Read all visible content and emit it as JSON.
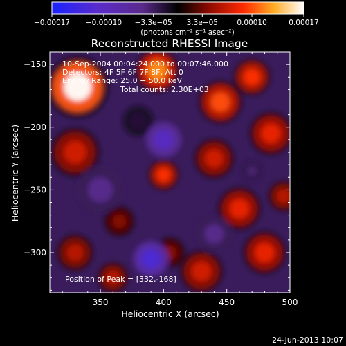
{
  "colorbar": {
    "tick_labels": [
      "−0.00017",
      "−0.00010",
      "−3.3e−05",
      "3.3e−05",
      "0.00010",
      "0.00017"
    ],
    "tick_values": [
      -0.00017,
      -0.0001,
      -3.3e-05,
      3.3e-05,
      0.0001,
      0.00017
    ],
    "range": [
      -0.00017,
      0.00017
    ],
    "units_label": "(photons cm⁻² s⁻¹ asec⁻²)"
  },
  "chart_data": {
    "type": "heatmap",
    "title": "Reconstructed RHESSI Image",
    "xlabel": "Heliocentric X (arcsec)",
    "ylabel": "Heliocentric Y (arcsec)",
    "xlim": [
      310,
      500
    ],
    "ylim": [
      -332,
      -140
    ],
    "x_ticks": [
      350,
      400,
      450,
      500
    ],
    "x_tick_labels": [
      "350",
      "400",
      "450",
      "500"
    ],
    "y_ticks": [
      -150,
      -200,
      -250,
      -300
    ],
    "y_tick_labels": [
      "−150",
      "−200",
      "−250",
      "−300"
    ],
    "annotations": {
      "time_range": "10-Sep-2004 00:04:24.000 to 00:07:46.000",
      "detectors": "Detectors: 4F 5F 6F 7F 8F, Att 0",
      "energy_range": "Energy Range: 25.0 − 50.0 keV",
      "total_counts": "Total counts: 2.30E+03",
      "peak_position": "Position of Peak = [332,-168]"
    },
    "peak": [
      332,
      -168
    ],
    "colormap": "blue-purple-black-red-orange-yellow-white",
    "blobs": [
      {
        "x": 332,
        "y": -168,
        "r": 20,
        "v": 0.00017
      },
      {
        "x": 395,
        "y": -155,
        "r": 14,
        "v": 0.00012
      },
      {
        "x": 445,
        "y": -180,
        "r": 14,
        "v": 0.0001
      },
      {
        "x": 470,
        "y": -160,
        "r": 12,
        "v": 9e-05
      },
      {
        "x": 485,
        "y": -205,
        "r": 14,
        "v": 8e-05
      },
      {
        "x": 440,
        "y": -225,
        "r": 13,
        "v": 7e-05
      },
      {
        "x": 400,
        "y": -238,
        "r": 10,
        "v": 9e-05
      },
      {
        "x": 330,
        "y": -220,
        "r": 16,
        "v": 7e-05
      },
      {
        "x": 460,
        "y": -265,
        "r": 14,
        "v": 8e-05
      },
      {
        "x": 495,
        "y": -255,
        "r": 10,
        "v": 6e-05
      },
      {
        "x": 480,
        "y": -300,
        "r": 14,
        "v": 8e-05
      },
      {
        "x": 430,
        "y": -315,
        "r": 14,
        "v": 7e-05
      },
      {
        "x": 330,
        "y": -300,
        "r": 12,
        "v": 6e-05
      },
      {
        "x": 360,
        "y": -320,
        "r": 10,
        "v": 6e-05
      },
      {
        "x": 365,
        "y": -275,
        "r": 10,
        "v": 4e-05
      },
      {
        "x": 405,
        "y": -300,
        "r": 10,
        "v": 4e-05
      },
      {
        "x": 380,
        "y": -195,
        "r": 12,
        "v": -2e-05
      },
      {
        "x": 400,
        "y": -210,
        "r": 14,
        "v": -0.0001
      },
      {
        "x": 350,
        "y": -250,
        "r": 18,
        "v": -5e-05
      },
      {
        "x": 390,
        "y": -305,
        "r": 14,
        "v": -0.00012
      },
      {
        "x": 440,
        "y": -285,
        "r": 14,
        "v": -5e-05
      },
      {
        "x": 470,
        "y": -235,
        "r": 8,
        "v": -4e-05
      }
    ]
  },
  "footer": {
    "date": "24-Jun-2013 10:07"
  }
}
